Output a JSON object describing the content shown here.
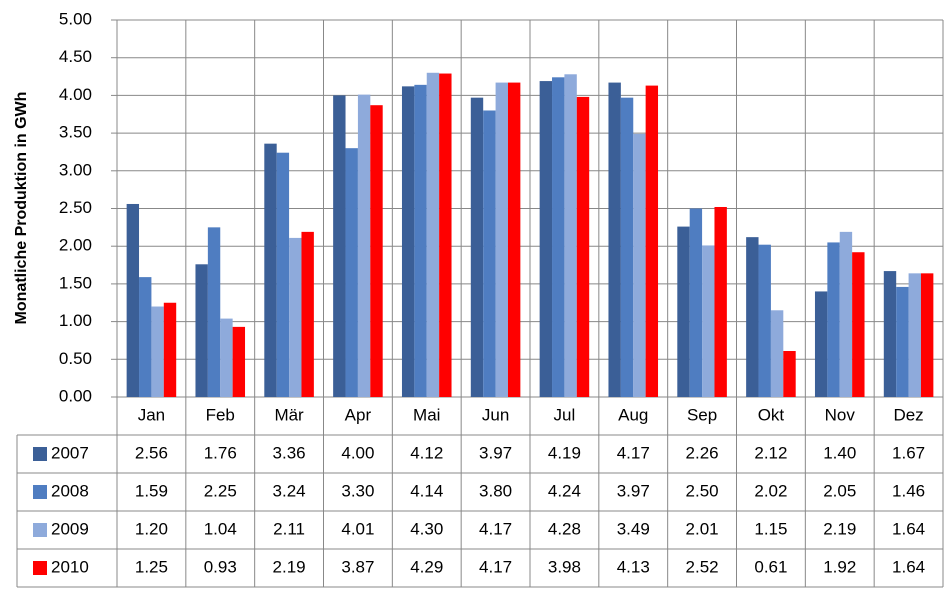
{
  "chart_data": {
    "type": "bar",
    "y_axis_label": "Monatliche Produktion in GWh",
    "categories": [
      "Jan",
      "Feb",
      "Mär",
      "Apr",
      "Mai",
      "Jun",
      "Jul",
      "Aug",
      "Sep",
      "Okt",
      "Nov",
      "Dez"
    ],
    "series": [
      {
        "name": "2007",
        "color": "#3b5f97",
        "values": [
          2.56,
          1.76,
          3.36,
          4.0,
          4.12,
          3.97,
          4.19,
          4.17,
          2.26,
          2.12,
          1.4,
          1.67
        ],
        "value_labels": [
          "2.56",
          "1.76",
          "3.36",
          "4.00",
          "4.12",
          "3.97",
          "4.19",
          "4.17",
          "2.26",
          "2.12",
          "1.40",
          "1.67"
        ]
      },
      {
        "name": "2008",
        "color": "#4f7dc1",
        "values": [
          1.59,
          2.25,
          3.24,
          3.3,
          4.14,
          3.8,
          4.24,
          3.97,
          2.5,
          2.02,
          2.05,
          1.46
        ],
        "value_labels": [
          "1.59",
          "2.25",
          "3.24",
          "3.30",
          "4.14",
          "3.80",
          "4.24",
          "3.97",
          "2.50",
          "2.02",
          "2.05",
          "1.46"
        ]
      },
      {
        "name": "2009",
        "color": "#8eaadb",
        "values": [
          1.2,
          1.04,
          2.11,
          4.01,
          4.3,
          4.17,
          4.28,
          3.49,
          2.01,
          1.15,
          2.19,
          1.64
        ],
        "value_labels": [
          "1.20",
          "1.04",
          "2.11",
          "4.01",
          "4.30",
          "4.17",
          "4.28",
          "3.49",
          "2.01",
          "1.15",
          "2.19",
          "1.64"
        ]
      },
      {
        "name": "2010",
        "color": "#ff0000",
        "values": [
          1.25,
          0.93,
          2.19,
          3.87,
          4.29,
          4.17,
          3.98,
          4.13,
          2.52,
          0.61,
          1.92,
          1.64
        ],
        "value_labels": [
          "1.25",
          "0.93",
          "2.19",
          "3.87",
          "4.29",
          "4.17",
          "3.98",
          "4.13",
          "2.52",
          "0.61",
          "1.92",
          "1.64"
        ]
      }
    ],
    "ylim": [
      0,
      5
    ],
    "yticks": [
      {
        "value": 0,
        "label": "0.00"
      },
      {
        "value": 0.5,
        "label": "0.50"
      },
      {
        "value": 1,
        "label": "1.00"
      },
      {
        "value": 1.5,
        "label": "1.50"
      },
      {
        "value": 2,
        "label": "2.00"
      },
      {
        "value": 2.5,
        "label": "2.50"
      },
      {
        "value": 3,
        "label": "3.00"
      },
      {
        "value": 3.5,
        "label": "3.50"
      },
      {
        "value": 4,
        "label": "4.00"
      },
      {
        "value": 4.5,
        "label": "4.50"
      },
      {
        "value": 5,
        "label": "5.00"
      }
    ],
    "grid": true
  }
}
